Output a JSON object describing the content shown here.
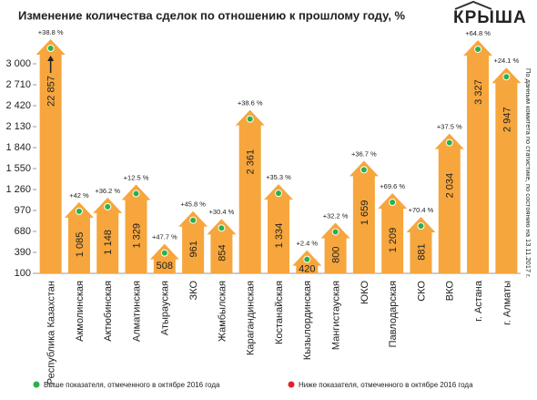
{
  "chart_data": {
    "type": "bar",
    "title": "Изменение количества сделок по отношению к прошлому году, %",
    "logo": "КРЫША",
    "source_note": "По данным комитета по статистике, по состоянию на 13.11.2017 г.",
    "categories": [
      "Республика Казахстан",
      "Акмолинская",
      "Актюбинская",
      "Алматинская",
      "Атырауская",
      "ЗКО",
      "Жамбылская",
      "Карагандинская",
      "Костанайская",
      "Кызылординская",
      "Мангистауская",
      "ЮКО",
      "Павлодарская",
      "СКО",
      "ВКО",
      "г. Астана",
      "г. Алматы"
    ],
    "values": [
      22857,
      1085,
      1148,
      1329,
      508,
      961,
      854,
      2361,
      1334,
      420,
      800,
      1659,
      1209,
      881,
      2034,
      3327,
      2947
    ],
    "value_labels": [
      "22 857",
      "1 085",
      "1 148",
      "1 329",
      "508",
      "961",
      "854",
      "2 361",
      "1 334",
      "420",
      "800",
      "1 659",
      "1 209",
      "881",
      "2 034",
      "3 327",
      "2 947"
    ],
    "change_labels": [
      "+38.8 %",
      "+42 %",
      "+36.2 %",
      "+12.5 %",
      "+47.7 %",
      "+45.8 %",
      "+30.4 %",
      "+38.6 %",
      "+35.3 %",
      "+2.4 %",
      "+32.2 %",
      "+36.7 %",
      "+69.6 %",
      "+70.4 %",
      "+37.5 %",
      "+64.8 %",
      "+24.1 %"
    ],
    "color": "#f6a63d",
    "ylim": [
      100,
      3000
    ],
    "yticks": [
      100,
      390,
      680,
      970,
      {
        "value": 1260,
        "label": "1 260"
      },
      {
        "value": 1550,
        "label": "1 550"
      },
      {
        "value": 1840,
        "label": "1 840"
      },
      {
        "value": 2130,
        "label": "2 130"
      },
      {
        "value": 2420,
        "label": "2 420"
      },
      {
        "value": 2710,
        "label": "2 710"
      },
      {
        "value": 3000,
        "label": "3 000"
      }
    ],
    "legend": [
      {
        "name": "Выше показателя, отмеченного в октябре 2016 года",
        "color": "#2bb04a"
      },
      {
        "name": "Ниже показателя, отмеченного в октябре 2016 года",
        "color": "#e32228"
      }
    ],
    "dot_color": "#2bb04a"
  }
}
